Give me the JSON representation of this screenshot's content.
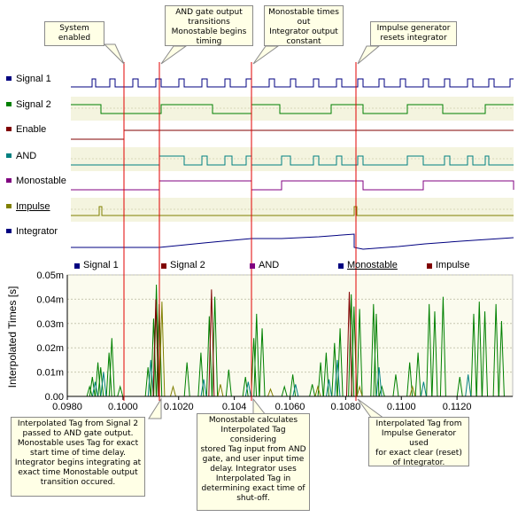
{
  "signals": [
    {
      "label": "Signal 1",
      "color": "#000080"
    },
    {
      "label": "Signal 2",
      "color": "#008000"
    },
    {
      "label": "Enable",
      "color": "#800000"
    },
    {
      "label": "AND",
      "color": "#008080"
    },
    {
      "label": "Monostable",
      "color": "#800080"
    },
    {
      "label": "Impulse",
      "color": "#808000"
    },
    {
      "label": "Integrator",
      "color": "#000080"
    }
  ],
  "callouts_top": [
    {
      "id": "system-enabled",
      "text": "System\nenabled"
    },
    {
      "id": "and-transitions",
      "text": "AND gate output\ntransitions\nMonostable begins\ntiming"
    },
    {
      "id": "monostable-out",
      "text": "Monostable times\nout\nIntegrator output\nconstant"
    },
    {
      "id": "impulse-reset",
      "text": "Impulse generator\nresets integrator"
    }
  ],
  "callouts_bottom": [
    {
      "id": "signal2-tag",
      "text": "Interpolated Tag from Signal 2\npassed to AND gate output.\nMonostable uses Tag for exact\nstart time of time delay.\nIntegrator begins integrating at\nexact time Monostable output\ntransition occured."
    },
    {
      "id": "monostable-calc",
      "text": "Monostable calculates\nInterpolated Tag considering\nstored Tag input from AND\ngate, and user input time\ndelay.  Integrator uses\nInterpolated Tag in\ndetermining exact time of\nshut-off."
    },
    {
      "id": "impulse-tag",
      "text": "Interpolated Tag from\nImpulse Generator used\nfor exact clear (reset)\nof Integrator."
    }
  ],
  "legend": [
    {
      "label": "Signal 1",
      "color": "#000080"
    },
    {
      "label": "Signal 2",
      "color": "#800000"
    },
    {
      "label": "AND",
      "color": "#800080"
    },
    {
      "label": "Monostable",
      "color": "#000080"
    },
    {
      "label": "Impulse",
      "color": "#800000"
    }
  ],
  "chart_data": {
    "type": "bar",
    "ylabel": "Interpolated Times [s]",
    "ylim": [
      0,
      0.05
    ],
    "xlim": [
      0.098,
      0.114
    ],
    "yticks": [
      "0.00",
      "0.01m",
      "0.02m",
      "0.03m",
      "0.04m",
      "0.05m"
    ],
    "xticks": [
      "0.0980",
      "0.1000",
      "0.1020",
      "0.104",
      "0.1060",
      "0.1080",
      "0.1100",
      "0.1120"
    ],
    "xtick_values": [
      0.098,
      0.1,
      0.102,
      0.104,
      0.106,
      0.108,
      0.11,
      0.112
    ],
    "markers_x": [
      0.09998,
      0.10118,
      0.10318,
      0.10813
    ],
    "series": [
      {
        "color": "#008000",
        "points": [
          [
            0.0988,
            0.004
          ],
          [
            0.0989,
            0.008
          ],
          [
            0.0991,
            0.014
          ],
          [
            0.0992,
            0.012
          ],
          [
            0.0995,
            0.018
          ],
          [
            0.0996,
            0.024
          ],
          [
            0.0999,
            0.004
          ],
          [
            0.1009,
            0.012
          ],
          [
            0.1011,
            0.032
          ],
          [
            0.1012,
            0.046
          ],
          [
            0.1013,
            0.038
          ],
          [
            0.1023,
            0.014
          ],
          [
            0.1028,
            0.018
          ],
          [
            0.1031,
            0.033
          ],
          [
            0.1033,
            0.041
          ],
          [
            0.1038,
            0.011
          ],
          [
            0.1044,
            0.008
          ],
          [
            0.1047,
            0.024
          ],
          [
            0.1048,
            0.034
          ],
          [
            0.105,
            0.028
          ],
          [
            0.1058,
            0.004
          ],
          [
            0.1061,
            0.009
          ],
          [
            0.1068,
            0.005
          ],
          [
            0.1071,
            0.014
          ],
          [
            0.1073,
            0.018
          ],
          [
            0.1076,
            0.022
          ],
          [
            0.1078,
            0.028
          ],
          [
            0.1082,
            0.042
          ],
          [
            0.1083,
            0.037
          ],
          [
            0.1085,
            0.036
          ],
          [
            0.109,
            0.038
          ],
          [
            0.1091,
            0.034
          ],
          [
            0.1093,
            0.004
          ],
          [
            0.1098,
            0.009
          ],
          [
            0.1103,
            0.014
          ],
          [
            0.1106,
            0.018
          ],
          [
            0.111,
            0.038
          ],
          [
            0.1112,
            0.035
          ],
          [
            0.1115,
            0.041
          ],
          [
            0.1121,
            0.008
          ],
          [
            0.1126,
            0.034
          ],
          [
            0.1128,
            0.039
          ],
          [
            0.113,
            0.035
          ],
          [
            0.1134,
            0.038
          ],
          [
            0.1136,
            0.031
          ]
        ]
      },
      {
        "color": "#008080",
        "points": [
          [
            0.099,
            0.006
          ],
          [
            0.0993,
            0.01
          ],
          [
            0.101,
            0.015
          ],
          [
            0.1029,
            0.007
          ],
          [
            0.1045,
            0.006
          ],
          [
            0.1062,
            0.005
          ],
          [
            0.1074,
            0.007
          ],
          [
            0.1077,
            0.015
          ],
          [
            0.1092,
            0.012
          ],
          [
            0.1108,
            0.006
          ],
          [
            0.1124,
            0.009
          ]
        ]
      },
      {
        "color": "#808000",
        "points": [
          [
            0.1014,
            0.039
          ],
          [
            0.1018,
            0.004
          ],
          [
            0.1035,
            0.005
          ],
          [
            0.1053,
            0.003
          ],
          [
            0.107,
            0.004
          ],
          [
            0.1085,
            0.004
          ],
          [
            0.1104,
            0.004
          ]
        ]
      },
      {
        "color": "#800000",
        "points": [
          [
            0.10118,
            0.04
          ],
          [
            0.10318,
            0.044
          ],
          [
            0.10813,
            0.043
          ]
        ]
      }
    ]
  }
}
